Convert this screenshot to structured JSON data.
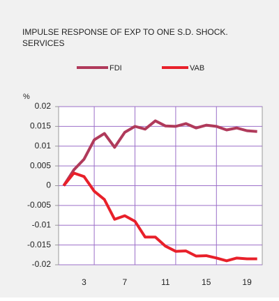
{
  "chart_data": {
    "type": "line",
    "title_lines": [
      "IMPULSE RESPONSE OF EXP TO ONE S.D. SHOCK.",
      "SERVICES"
    ],
    "y_label": "%",
    "categories": [
      null,
      null,
      "3",
      null,
      null,
      null,
      "7",
      null,
      null,
      null,
      "11",
      null,
      null,
      null,
      "15",
      null,
      null,
      null,
      "19",
      null
    ],
    "series": [
      {
        "name": "FDI",
        "color": "#b03a5b",
        "values": [
          0,
          0.004,
          0.0067,
          0.0116,
          0.0132,
          0.0097,
          0.0135,
          0.015,
          0.0143,
          0.0164,
          0.0151,
          0.015,
          0.0157,
          0.0146,
          0.0153,
          0.015,
          0.0141,
          0.0146,
          0.0139,
          0.0137
        ]
      },
      {
        "name": "VAB",
        "color": "#e8202a",
        "values": [
          0,
          0.0032,
          0.0023,
          -0.0014,
          -0.0035,
          -0.0085,
          -0.0076,
          -0.009,
          -0.013,
          -0.013,
          -0.0153,
          -0.0166,
          -0.0165,
          -0.0178,
          -0.0177,
          -0.0183,
          -0.019,
          -0.0183,
          -0.0185,
          -0.0185
        ]
      }
    ],
    "ylim": [
      -0.02,
      0.02
    ],
    "yticks": [
      0.02,
      0.015,
      0.01,
      0.005,
      0,
      -0.005,
      -0.01,
      -0.015,
      -0.02
    ],
    "grid": true,
    "grid_color": "#9b6fc8",
    "legend": "top"
  }
}
